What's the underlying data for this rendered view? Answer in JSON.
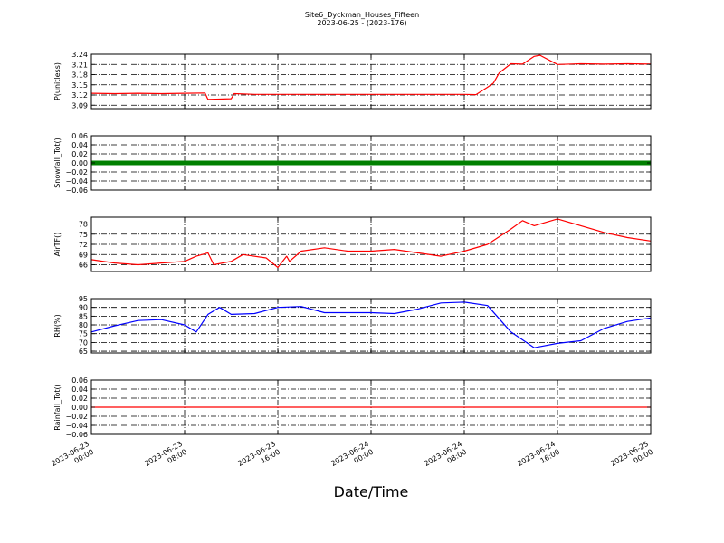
{
  "figure": {
    "title": "Site6_Dyckman_Houses_Fifteen",
    "subtitle": "2023-06-25 - (2023-176)",
    "xlabel": "Date/Time"
  },
  "chart_data": {
    "type": "line",
    "x_axis": {
      "range": [
        "2023-06-23 00:00",
        "2023-06-25 00:00"
      ],
      "ticks": [
        {
          "value": "2023-06-23 00:00",
          "label": [
            "2023-06-23",
            "00:00"
          ]
        },
        {
          "value": "2023-06-23 08:00",
          "label": [
            "2023-06-23",
            "08:00"
          ]
        },
        {
          "value": "2023-06-23 16:00",
          "label": [
            "2023-06-23",
            "16:00"
          ]
        },
        {
          "value": "2023-06-24 00:00",
          "label": [
            "2023-06-24",
            "00:00"
          ]
        },
        {
          "value": "2023-06-24 08:00",
          "label": [
            "2023-06-24",
            "08:00"
          ]
        },
        {
          "value": "2023-06-24 16:00",
          "label": [
            "2023-06-24",
            "16:00"
          ]
        },
        {
          "value": "2023-06-25 00:00",
          "label": [
            "2023-06-25",
            "00:00"
          ]
        }
      ]
    },
    "grid": true,
    "panels": [
      {
        "ylabel": "P(unitless)",
        "ylim": [
          3.08,
          3.24
        ],
        "yticks": [
          3.09,
          3.12,
          3.15,
          3.18,
          3.21,
          3.24
        ],
        "yticklabels": [
          "3.09",
          "3.12",
          "3.15",
          "3.18",
          "3.21",
          "3.24"
        ],
        "color": "#ff0000",
        "style": "line",
        "x": [
          "2023-06-23 00:00",
          "2023-06-23 02:00",
          "2023-06-23 04:00",
          "2023-06-23 06:00",
          "2023-06-23 08:00",
          "2023-06-23 09:45",
          "2023-06-23 10:00",
          "2023-06-23 12:00",
          "2023-06-23 12:15",
          "2023-06-23 14:00",
          "2023-06-23 16:00",
          "2023-06-23 20:00",
          "2023-06-24 00:00",
          "2023-06-24 04:00",
          "2023-06-24 08:00",
          "2023-06-24 09:00",
          "2023-06-24 10:00",
          "2023-06-24 10:30",
          "2023-06-24 11:00",
          "2023-06-24 12:00",
          "2023-06-24 13:00",
          "2023-06-24 14:00",
          "2023-06-24 14:30",
          "2023-06-24 16:00",
          "2023-06-24 18:00",
          "2023-06-24 20:00",
          "2023-06-24 22:00",
          "2023-06-25 00:00"
        ],
        "y": [
          3.125,
          3.124,
          3.125,
          3.124,
          3.125,
          3.126,
          3.107,
          3.109,
          3.124,
          3.122,
          3.122,
          3.122,
          3.122,
          3.122,
          3.122,
          3.121,
          3.143,
          3.155,
          3.185,
          3.212,
          3.211,
          3.234,
          3.237,
          3.21,
          3.212,
          3.211,
          3.212,
          3.211
        ]
      },
      {
        "ylabel": "Snowfall_Tot()",
        "ylim": [
          -0.06,
          0.06
        ],
        "yticks": [
          -0.06,
          -0.04,
          -0.02,
          0.0,
          0.02,
          0.04,
          0.06
        ],
        "yticklabels": [
          "−0.06",
          "−0.04",
          "−0.02",
          "0.00",
          "0.02",
          "0.04",
          "0.06"
        ],
        "color": "#008000",
        "style": "markers",
        "x": [
          "2023-06-23 00:00",
          "2023-06-25 00:00"
        ],
        "y": [
          0.0,
          0.0
        ]
      },
      {
        "ylabel": "AirTF()",
        "ylim": [
          64,
          80
        ],
        "yticks": [
          66,
          69,
          72,
          75,
          78
        ],
        "yticklabels": [
          "66",
          "69",
          "72",
          "75",
          "78"
        ],
        "color": "#ff0000",
        "style": "line",
        "x": [
          "2023-06-23 00:00",
          "2023-06-23 02:00",
          "2023-06-23 04:00",
          "2023-06-23 06:00",
          "2023-06-23 08:00",
          "2023-06-23 09:00",
          "2023-06-23 10:00",
          "2023-06-23 10:30",
          "2023-06-23 12:00",
          "2023-06-23 13:00",
          "2023-06-23 15:00",
          "2023-06-23 16:00",
          "2023-06-23 16:45",
          "2023-06-23 17:00",
          "2023-06-23 18:00",
          "2023-06-23 20:00",
          "2023-06-23 22:00",
          "2023-06-24 00:00",
          "2023-06-24 02:00",
          "2023-06-24 04:00",
          "2023-06-24 06:00",
          "2023-06-24 08:00",
          "2023-06-24 10:00",
          "2023-06-24 12:00",
          "2023-06-24 13:00",
          "2023-06-24 14:00",
          "2023-06-24 16:00",
          "2023-06-24 18:00",
          "2023-06-24 20:00",
          "2023-06-24 22:00",
          "2023-06-25 00:00"
        ],
        "y": [
          67.5,
          66.5,
          66.0,
          66.5,
          67.0,
          68.5,
          69.5,
          66.0,
          67.0,
          69.0,
          68.0,
          65.2,
          68.5,
          67.0,
          70.0,
          71.0,
          70.0,
          70.0,
          70.5,
          69.5,
          68.5,
          70.0,
          72.0,
          76.5,
          79.0,
          77.5,
          79.5,
          77.5,
          75.5,
          74.0,
          73.0
        ]
      },
      {
        "ylabel": "RH(%)",
        "ylim": [
          64,
          95
        ],
        "yticks": [
          65,
          70,
          75,
          80,
          85,
          90,
          95
        ],
        "yticklabels": [
          "65",
          "70",
          "75",
          "80",
          "85",
          "90",
          "95"
        ],
        "color": "#0000ff",
        "style": "line",
        "x": [
          "2023-06-23 00:00",
          "2023-06-23 02:00",
          "2023-06-23 04:00",
          "2023-06-23 06:00",
          "2023-06-23 08:00",
          "2023-06-23 09:00",
          "2023-06-23 10:00",
          "2023-06-23 11:00",
          "2023-06-23 12:00",
          "2023-06-23 14:00",
          "2023-06-23 16:00",
          "2023-06-23 18:00",
          "2023-06-23 20:00",
          "2023-06-23 22:00",
          "2023-06-24 00:00",
          "2023-06-24 02:00",
          "2023-06-24 04:00",
          "2023-06-24 06:00",
          "2023-06-24 08:00",
          "2023-06-24 10:00",
          "2023-06-24 12:00",
          "2023-06-24 14:00",
          "2023-06-24 16:00",
          "2023-06-24 18:00",
          "2023-06-24 20:00",
          "2023-06-24 22:00",
          "2023-06-25 00:00"
        ],
        "y": [
          76.0,
          79.5,
          82.5,
          83.0,
          80.0,
          76.0,
          86.0,
          90.0,
          86.0,
          86.5,
          90.0,
          90.5,
          87.0,
          87.0,
          87.0,
          86.5,
          89.0,
          92.5,
          93.0,
          91.0,
          76.0,
          67.0,
          69.5,
          71.0,
          78.0,
          82.0,
          84.0
        ]
      },
      {
        "ylabel": "Rainfall_Tot()",
        "ylim": [
          -0.06,
          0.06
        ],
        "yticks": [
          -0.06,
          -0.04,
          -0.02,
          0.0,
          0.02,
          0.04,
          0.06
        ],
        "yticklabels": [
          "−0.06",
          "−0.04",
          "−0.02",
          "0.00",
          "0.02",
          "0.04",
          "0.06"
        ],
        "color": "#ff0000",
        "style": "line",
        "x": [
          "2023-06-23 00:00",
          "2023-06-25 00:00"
        ],
        "y": [
          0.0,
          0.0
        ]
      }
    ]
  }
}
